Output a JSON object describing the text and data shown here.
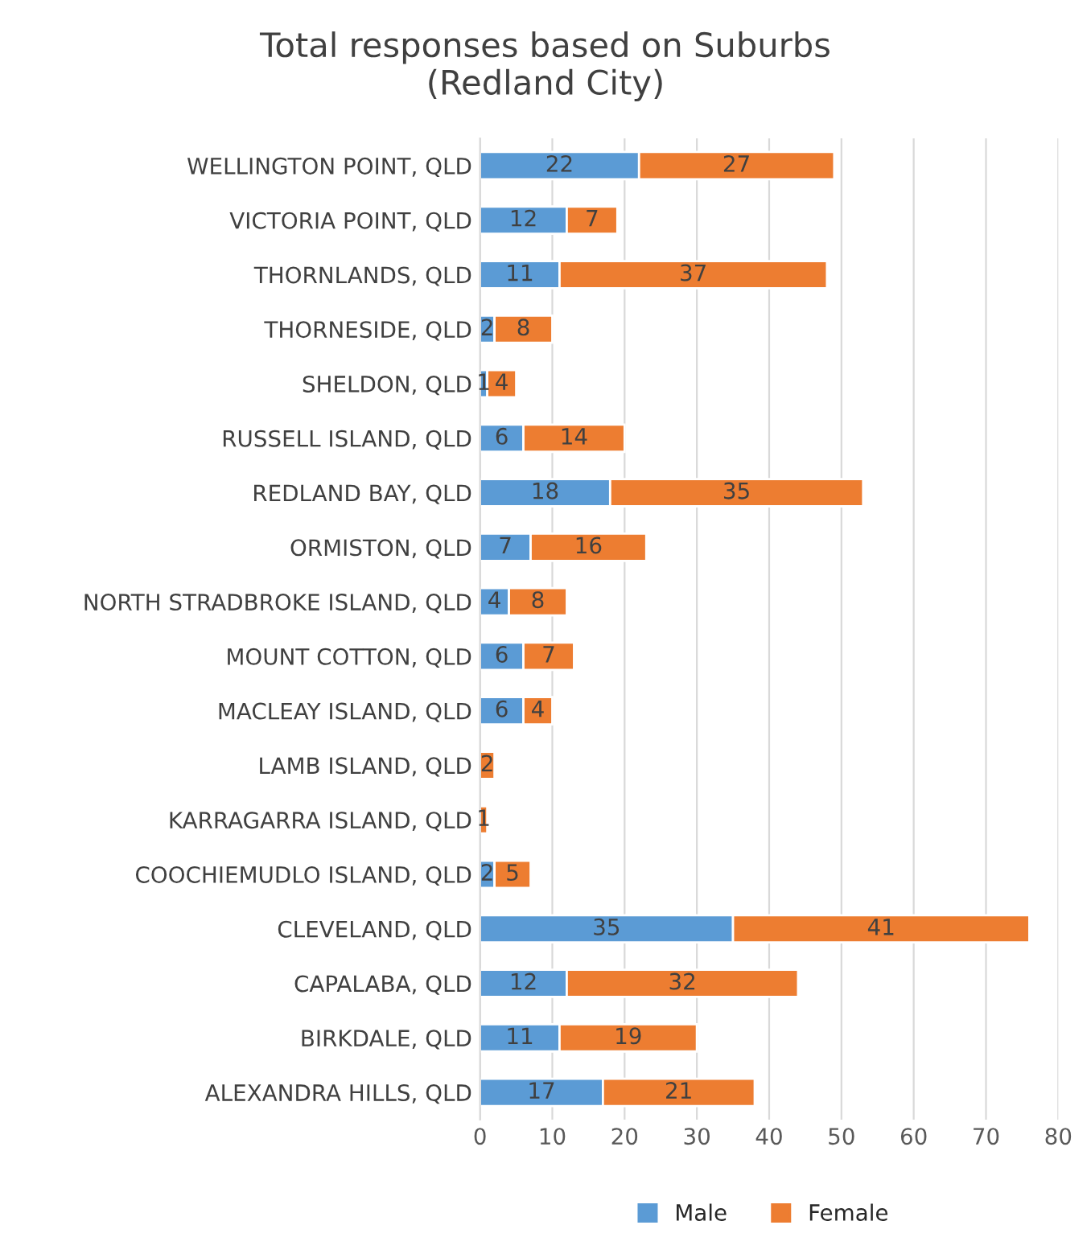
{
  "chart_data": {
    "type": "bar",
    "orientation": "horizontal",
    "stacked": true,
    "title": "Total responses based on Suburbs\n(Redland City)",
    "categories": [
      "WELLINGTON POINT, QLD",
      "VICTORIA POINT, QLD",
      "THORNLANDS, QLD",
      "THORNESIDE, QLD",
      "SHELDON, QLD",
      "RUSSELL ISLAND, QLD",
      "REDLAND BAY, QLD",
      "ORMISTON, QLD",
      "NORTH STRADBROKE ISLAND, QLD",
      "MOUNT COTTON, QLD",
      "MACLEAY ISLAND, QLD",
      "LAMB ISLAND, QLD",
      "KARRAGARRA ISLAND, QLD",
      "COOCHIEMUDLO ISLAND, QLD",
      "CLEVELAND, QLD",
      "CAPALABA, QLD",
      "BIRKDALE, QLD",
      "ALEXANDRA HILLS, QLD"
    ],
    "series": [
      {
        "name": "Male",
        "color": "#5b9bd5",
        "values": [
          22,
          12,
          11,
          2,
          1,
          6,
          18,
          7,
          4,
          6,
          6,
          null,
          null,
          2,
          35,
          12,
          11,
          17
        ]
      },
      {
        "name": "Female",
        "color": "#ed7d31",
        "values": [
          27,
          7,
          37,
          8,
          4,
          14,
          35,
          16,
          8,
          7,
          4,
          2,
          1,
          5,
          41,
          32,
          19,
          21
        ]
      }
    ],
    "xlim": [
      0,
      80
    ],
    "xticks": [
      0,
      10,
      20,
      30,
      40,
      50,
      60,
      70,
      80
    ],
    "grid": "x",
    "legend": "bottom",
    "data_labels": true
  }
}
